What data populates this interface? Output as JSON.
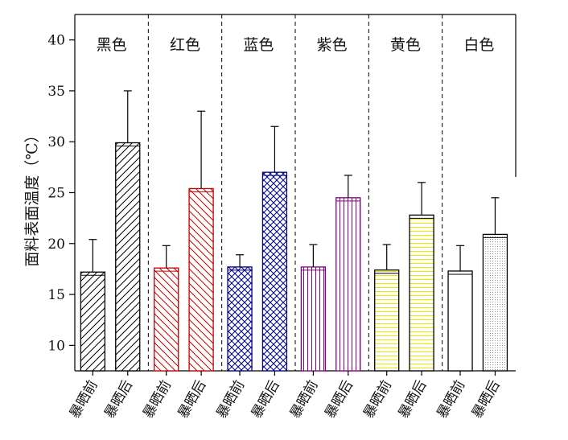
{
  "chart_data": {
    "type": "bar",
    "ylabel": "面料表面温度（℃）",
    "ylim": [
      7.5,
      42.5
    ],
    "yticks": [
      10,
      15,
      20,
      25,
      30,
      35,
      40
    ],
    "group_labels": [
      "黑色",
      "红色",
      "蓝色",
      "紫色",
      "黄色",
      "白色"
    ],
    "categories": [
      "暴晒前",
      "暴晒后"
    ],
    "groups": [
      {
        "name": "黑色",
        "color": "#000000",
        "pattern": "diag-right",
        "values": [
          17.2,
          29.9
        ],
        "errors": [
          3.2,
          5.1
        ]
      },
      {
        "name": "红色",
        "color": "#c00000",
        "pattern": "diag-left",
        "values": [
          17.6,
          25.4
        ],
        "errors": [
          2.2,
          7.6
        ]
      },
      {
        "name": "蓝色",
        "color": "#000080",
        "pattern": "crosshatch",
        "values": [
          17.7,
          27.0
        ],
        "errors": [
          1.2,
          4.5
        ]
      },
      {
        "name": "紫色",
        "color": "#800080",
        "pattern": "vertical",
        "values": [
          17.7,
          24.5
        ],
        "errors": [
          2.2,
          2.2
        ]
      },
      {
        "name": "黄色",
        "color": "#e8e800",
        "pattern": "horizontal",
        "values": [
          17.4,
          22.8
        ],
        "errors": [
          2.5,
          3.2
        ]
      },
      {
        "name": "白色",
        "color": "#000000",
        "pattern": "none|dots",
        "values": [
          17.3,
          20.9
        ],
        "errors": [
          2.5,
          3.6
        ]
      }
    ],
    "grid": false,
    "legend": "none"
  }
}
